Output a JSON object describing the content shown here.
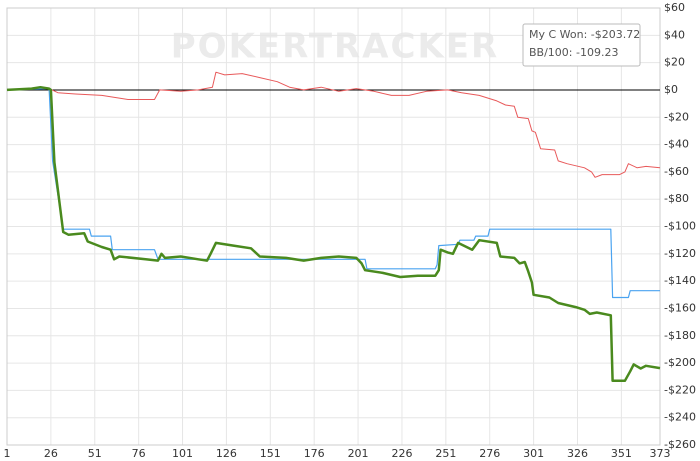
{
  "chart_data": {
    "type": "line",
    "watermark": "POKERTRACKER",
    "legend_lines": [
      "My C Won: -$203.72",
      "BB/100: -109.23"
    ],
    "xlim": [
      1,
      373
    ],
    "xticks": [
      1,
      26,
      51,
      76,
      101,
      126,
      151,
      176,
      201,
      226,
      251,
      276,
      301,
      326,
      351,
      373
    ],
    "ylim": [
      -260,
      60
    ],
    "yticks": [
      {
        "value": 60,
        "label": "$60"
      },
      {
        "value": 40,
        "label": "$40"
      },
      {
        "value": 20,
        "label": "$20"
      },
      {
        "value": 0,
        "label": "$0"
      },
      {
        "value": -20,
        "label": "-$20"
      },
      {
        "value": -40,
        "label": "-$40"
      },
      {
        "value": -60,
        "label": "-$60"
      },
      {
        "value": -80,
        "label": "-$80"
      },
      {
        "value": -100,
        "label": "-$100"
      },
      {
        "value": -120,
        "label": "-$120"
      },
      {
        "value": -140,
        "label": "-$140"
      },
      {
        "value": -160,
        "label": "-$160"
      },
      {
        "value": -180,
        "label": "-$180"
      },
      {
        "value": -200,
        "label": "-$200"
      },
      {
        "value": -220,
        "label": "-$220"
      },
      {
        "value": -240,
        "label": "-$240"
      },
      {
        "value": -260,
        "label": "-$260"
      }
    ],
    "grid": true,
    "series": [
      {
        "color": "#e8595a",
        "width": 1,
        "x": [
          1,
          25,
          30,
          40,
          55,
          65,
          70,
          85,
          88,
          100,
          110,
          118,
          120,
          125,
          135,
          145,
          155,
          162,
          170,
          180,
          190,
          200,
          210,
          220,
          230,
          240,
          252,
          260,
          270,
          280,
          285,
          290,
          292,
          298,
          300,
          302,
          305,
          313,
          315,
          320,
          330,
          334,
          336,
          340,
          350,
          353,
          355,
          360,
          365,
          373
        ],
        "values": [
          0,
          1,
          -2,
          -3,
          -4,
          -6,
          -7,
          -7,
          0,
          -1,
          0,
          2,
          13,
          11,
          12,
          9,
          6,
          2,
          0,
          2,
          -1,
          1,
          -1,
          -4,
          -4,
          -1,
          0,
          -2,
          -4,
          -8,
          -11,
          -12,
          -20,
          -21,
          -30,
          -31,
          -43,
          -44,
          -52,
          -54,
          -57,
          -60,
          -64,
          -62,
          -62,
          -60,
          -54,
          -57,
          -56,
          -57
        ]
      },
      {
        "color": "#4aa3f0",
        "width": 1.2,
        "x": [
          1,
          25,
          27,
          33,
          48,
          49,
          60,
          61,
          85,
          87,
          205,
          206,
          245,
          246,
          247,
          258,
          259,
          267,
          268,
          275,
          276,
          345,
          346,
          355,
          356,
          373
        ],
        "values": [
          0,
          1,
          -52,
          -102,
          -102,
          -107,
          -107,
          -117,
          -117,
          -124,
          -124,
          -131,
          -131,
          -128,
          -114,
          -113,
          -110,
          -110,
          -107,
          -107,
          -102,
          -102,
          -152,
          -152,
          -147,
          -147
        ]
      },
      {
        "color": "#4a8a1e",
        "width": 2.5,
        "x": [
          1,
          15,
          20,
          25,
          26,
          28,
          33,
          36,
          45,
          47,
          55,
          60,
          62,
          65,
          80,
          87,
          89,
          91,
          100,
          110,
          115,
          117,
          120,
          130,
          140,
          145,
          160,
          170,
          180,
          190,
          200,
          203,
          205,
          215,
          225,
          235,
          245,
          247,
          248,
          252,
          255,
          258,
          266,
          270,
          280,
          282,
          290,
          293,
          296,
          298,
          300,
          301,
          310,
          315,
          325,
          330,
          333,
          337,
          345,
          346,
          353,
          356,
          358,
          362,
          365,
          373
        ],
        "values": [
          0,
          1,
          2,
          1,
          0,
          -53,
          -104,
          -106,
          -105,
          -111,
          -115,
          -117,
          -124,
          -122,
          -124,
          -125,
          -120,
          -123,
          -122,
          -124,
          -125,
          -120,
          -112,
          -114,
          -116,
          -122,
          -123,
          -125,
          -123,
          -122,
          -123,
          -127,
          -132,
          -134,
          -137,
          -136,
          -136,
          -132,
          -117,
          -119,
          -120,
          -112,
          -117,
          -110,
          -112,
          -122,
          -123,
          -127,
          -126,
          -133,
          -141,
          -150,
          -152,
          -156,
          -159,
          -161,
          -164,
          -163,
          -165,
          -213,
          -213,
          -206,
          -201,
          -204,
          -202,
          -203.72
        ]
      }
    ]
  }
}
